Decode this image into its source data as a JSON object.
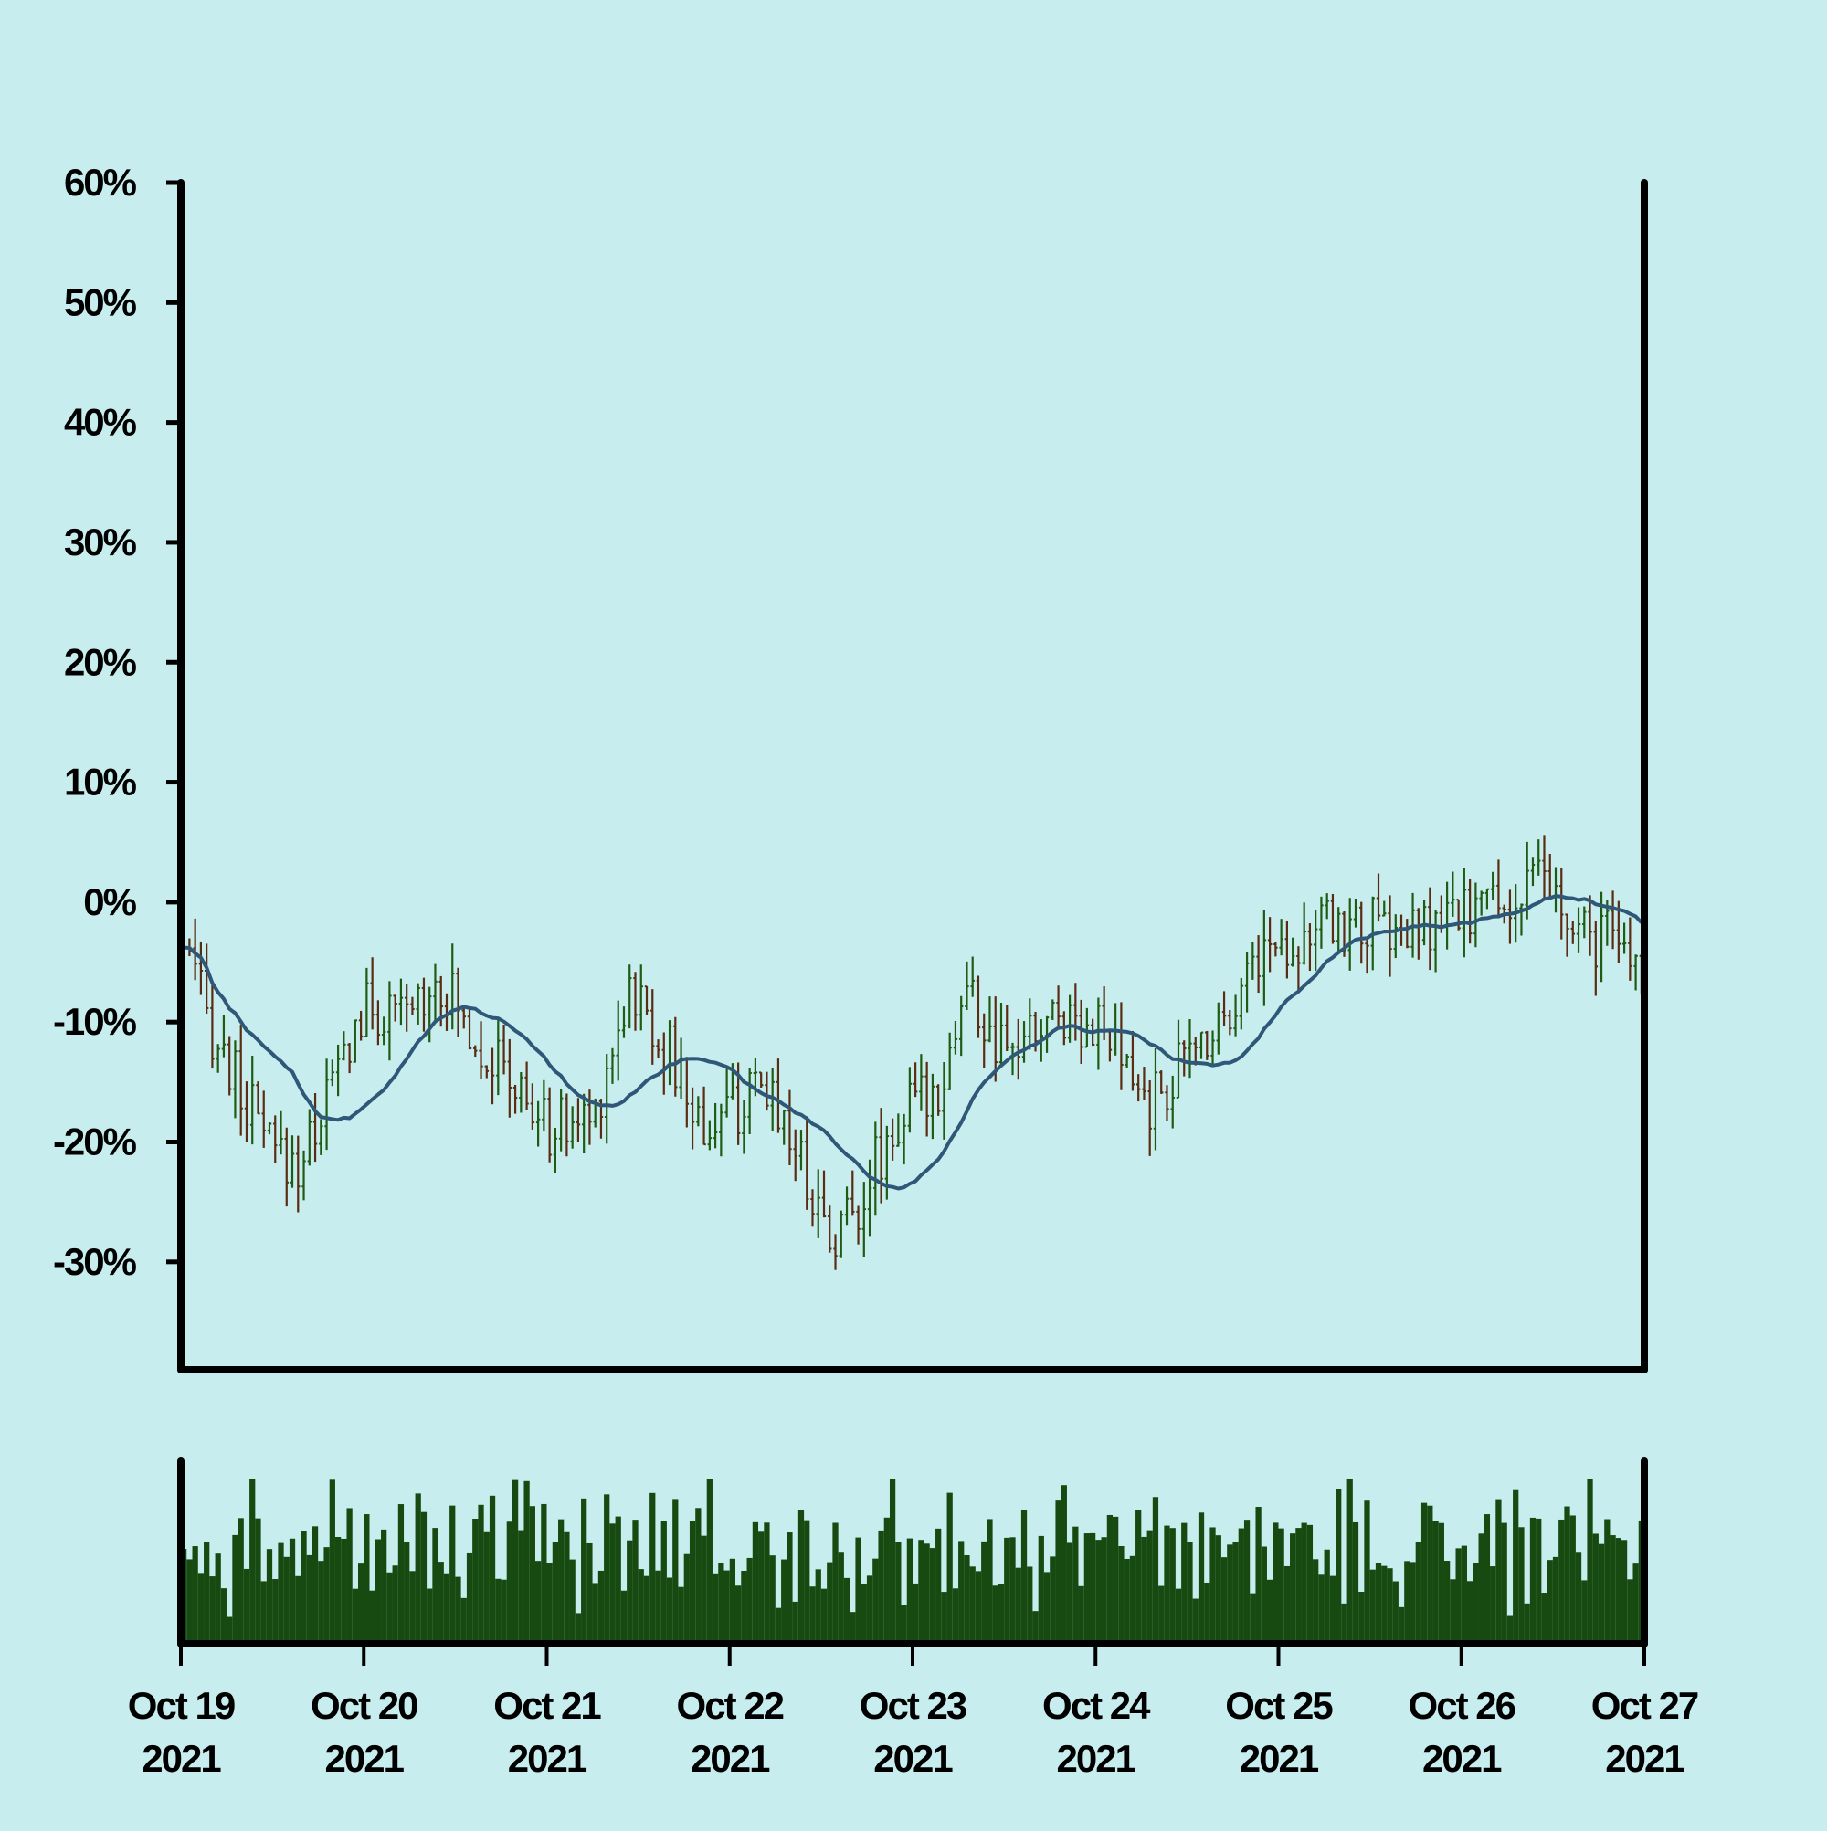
{
  "colors": {
    "background": "#c8edee",
    "frame": "#000000",
    "up_bar": "#1e5c14",
    "down_bar": "#5a2c12",
    "moving_average": "#2f5878",
    "volume": "#174a10"
  },
  "chart_data": {
    "type": "ohlc",
    "y_unit": "percent",
    "ylim": [
      -39,
      60
    ],
    "y_ticks": [
      {
        "value": 60,
        "label": "60%"
      },
      {
        "value": 50,
        "label": "50%"
      },
      {
        "value": 40,
        "label": "40%"
      },
      {
        "value": 30,
        "label": "30%"
      },
      {
        "value": 20,
        "label": "20%"
      },
      {
        "value": 10,
        "label": "10%"
      },
      {
        "value": 0,
        "label": "0%"
      },
      {
        "value": -10,
        "label": "-10%"
      },
      {
        "value": -20,
        "label": "-20%"
      },
      {
        "value": -30,
        "label": "-30%"
      }
    ],
    "x_ticks": [
      {
        "line1": "Oct 19",
        "line2": "2021"
      },
      {
        "line1": "Oct 20",
        "line2": "2021"
      },
      {
        "line1": "Oct 21",
        "line2": "2021"
      },
      {
        "line1": "Oct 22",
        "line2": "2021"
      },
      {
        "line1": "Oct 23",
        "line2": "2021"
      },
      {
        "line1": "Oct 24",
        "line2": "2021"
      },
      {
        "line1": "Oct 25",
        "line2": "2021"
      },
      {
        "line1": "Oct 26",
        "line2": "2021"
      },
      {
        "line1": "Oct 27",
        "line2": "2021"
      }
    ],
    "x_range_days": [
      0,
      8
    ],
    "bars_per_day": 32,
    "close_anchors": [
      [
        0.0,
        -3
      ],
      [
        0.15,
        -10
      ],
      [
        0.3,
        -15
      ],
      [
        0.5,
        -21
      ],
      [
        0.65,
        -22
      ],
      [
        0.8,
        -16
      ],
      [
        1.0,
        -9
      ],
      [
        1.2,
        -10
      ],
      [
        1.4,
        -6
      ],
      [
        1.6,
        -11
      ],
      [
        1.8,
        -15
      ],
      [
        2.0,
        -19
      ],
      [
        2.25,
        -18
      ],
      [
        2.45,
        -7
      ],
      [
        2.65,
        -12
      ],
      [
        2.85,
        -19
      ],
      [
        3.05,
        -17
      ],
      [
        3.25,
        -16
      ],
      [
        3.4,
        -22
      ],
      [
        3.55,
        -28
      ],
      [
        3.7,
        -25
      ],
      [
        3.85,
        -20
      ],
      [
        4.0,
        -17
      ],
      [
        4.15,
        -15
      ],
      [
        4.3,
        -7
      ],
      [
        4.45,
        -13
      ],
      [
        4.6,
        -12
      ],
      [
        4.8,
        -9
      ],
      [
        5.0,
        -10
      ],
      [
        5.15,
        -14
      ],
      [
        5.3,
        -17
      ],
      [
        5.45,
        -14
      ],
      [
        5.6,
        -11
      ],
      [
        5.75,
        -8
      ],
      [
        5.9,
        -4
      ],
      [
        6.1,
        -3
      ],
      [
        6.3,
        -2
      ],
      [
        6.5,
        -2
      ],
      [
        6.7,
        -3
      ],
      [
        6.9,
        -2
      ],
      [
        7.1,
        0
      ],
      [
        7.3,
        0
      ],
      [
        7.45,
        2
      ],
      [
        7.6,
        -3
      ],
      [
        7.8,
        -3
      ],
      [
        8.0,
        -6
      ]
    ],
    "volume_profile": [
      0.55,
      0.35,
      0.7,
      0.45,
      0.6,
      0.3,
      0.8,
      0.5,
      0.25,
      0.65,
      0.75,
      0.4,
      0.9,
      0.5,
      0.3,
      0.6
    ],
    "series": [
      {
        "type": "ohlc"
      },
      {
        "type": "line"
      },
      {
        "type": "volume"
      }
    ]
  }
}
